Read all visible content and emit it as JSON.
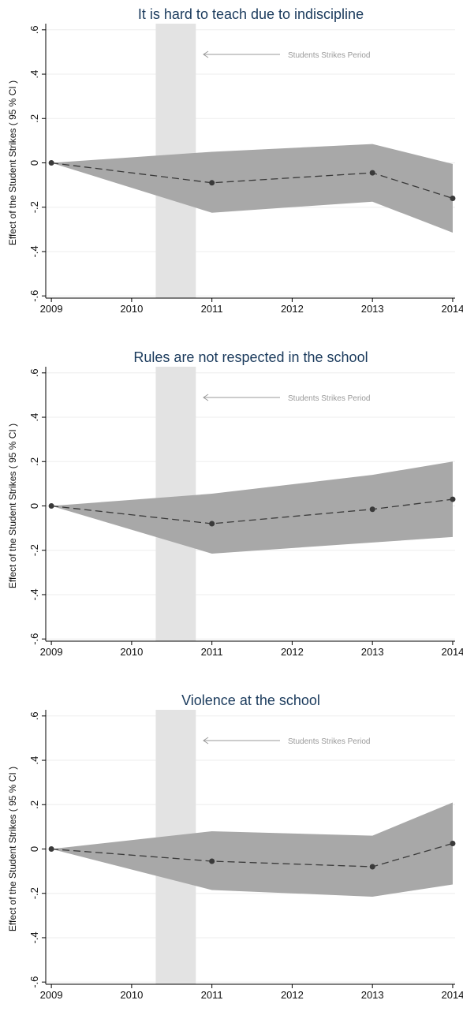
{
  "chart_data": [
    {
      "type": "line",
      "title": "It is hard to teach due to indiscipline",
      "ylabel": "Effect of the Student Strikes ( 95 % CI )",
      "annotation": "Students Strikes Period",
      "x": [
        2009,
        2011,
        2013,
        2014
      ],
      "values": [
        0,
        -0.09,
        -0.045,
        -0.16
      ],
      "ci_lower": [
        0,
        -0.225,
        -0.175,
        -0.315
      ],
      "ci_upper": [
        0,
        0.05,
        0.085,
        -0.005
      ],
      "shade_x": [
        2010.3,
        2010.8
      ],
      "xlim": [
        2008.93,
        2014.03
      ],
      "ylim": [
        -0.61,
        0.61
      ],
      "xticks": [
        2009,
        2010,
        2011,
        2012,
        2013,
        2014
      ],
      "yticks": [
        {
          "value": 0.6,
          "label": ".6"
        },
        {
          "value": 0.4,
          "label": ".4"
        },
        {
          "value": 0.2,
          "label": ".2"
        },
        0,
        {
          "value": -0.2,
          "label": "-.2"
        },
        {
          "value": -0.4,
          "label": "-.4"
        },
        {
          "value": -0.6,
          "label": "-.6"
        }
      ],
      "grid": true,
      "color": "#3a3a3a",
      "ci_color": "#a8a8a8",
      "shade_color": "#e3e3e3"
    },
    {
      "type": "line",
      "title": "Rules are not respected in the school",
      "ylabel": "Effect of the Student Strikes ( 95 % CI )",
      "annotation": "Students Strikes Period",
      "x": [
        2009,
        2011,
        2013,
        2014
      ],
      "values": [
        0,
        -0.08,
        -0.015,
        0.03
      ],
      "ci_lower": [
        0,
        -0.215,
        -0.165,
        -0.14
      ],
      "ci_upper": [
        0,
        0.055,
        0.14,
        0.2
      ],
      "shade_x": [
        2010.3,
        2010.8
      ],
      "xlim": [
        2008.93,
        2014.03
      ],
      "ylim": [
        -0.61,
        0.61
      ],
      "xticks": [
        2009,
        2010,
        2011,
        2012,
        2013,
        2014
      ],
      "yticks": [
        {
          "value": 0.6,
          "label": ".6"
        },
        {
          "value": 0.4,
          "label": ".4"
        },
        {
          "value": 0.2,
          "label": ".2"
        },
        0,
        {
          "value": -0.2,
          "label": "-.2"
        },
        {
          "value": -0.4,
          "label": "-.4"
        },
        {
          "value": -0.6,
          "label": "-.6"
        }
      ],
      "grid": true,
      "color": "#3a3a3a",
      "ci_color": "#a8a8a8",
      "shade_color": "#e3e3e3"
    },
    {
      "type": "line",
      "title": "Violence at the school",
      "ylabel": "Effect of the Student Strikes ( 95 % CI )",
      "annotation": "Students Strikes Period",
      "x": [
        2009,
        2011,
        2013,
        2014
      ],
      "values": [
        0,
        -0.055,
        -0.08,
        0.025
      ],
      "ci_lower": [
        0,
        -0.185,
        -0.215,
        -0.16
      ],
      "ci_upper": [
        0,
        0.08,
        0.06,
        0.21
      ],
      "shade_x": [
        2010.3,
        2010.8
      ],
      "xlim": [
        2008.93,
        2014.03
      ],
      "ylim": [
        -0.61,
        0.61
      ],
      "xticks": [
        2009,
        2010,
        2011,
        2012,
        2013,
        2014
      ],
      "yticks": [
        {
          "value": 0.6,
          "label": ".6"
        },
        {
          "value": 0.4,
          "label": ".4"
        },
        {
          "value": 0.2,
          "label": ".2"
        },
        0,
        {
          "value": -0.2,
          "label": "-.2"
        },
        {
          "value": -0.4,
          "label": "-.4"
        },
        {
          "value": -0.6,
          "label": "-.6"
        }
      ],
      "grid": true,
      "color": "#3a3a3a",
      "ci_color": "#a8a8a8",
      "shade_color": "#e3e3e3"
    }
  ]
}
